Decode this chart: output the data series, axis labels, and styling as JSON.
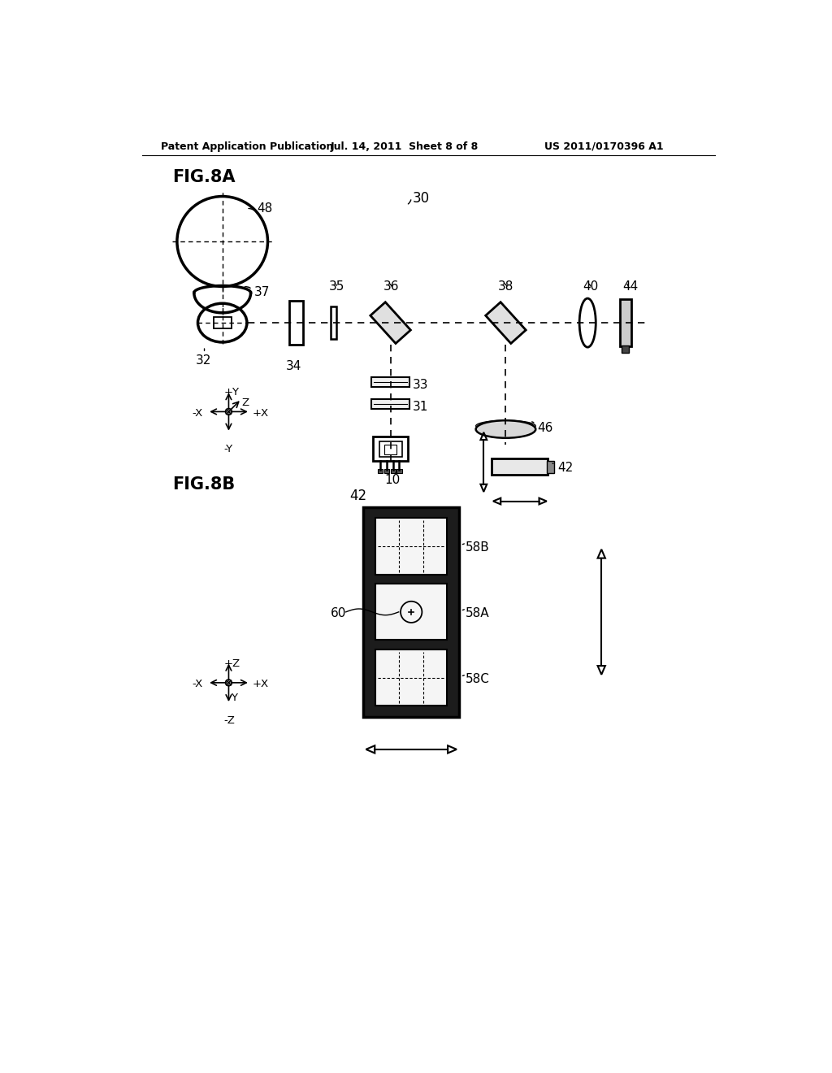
{
  "header_left": "Patent Application Publication",
  "header_mid": "Jul. 14, 2011  Sheet 8 of 8",
  "header_right": "US 2011/0170396 A1",
  "fig8a_label": "FIG.8A",
  "fig8b_label": "FIG.8B",
  "bg_color": "#ffffff",
  "line_color": "#000000"
}
